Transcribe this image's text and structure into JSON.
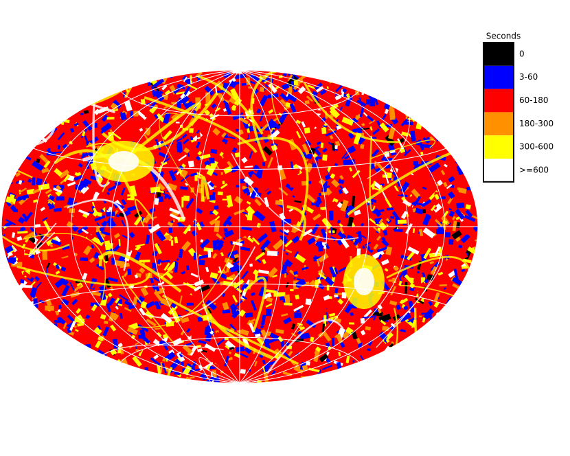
{
  "legend": {
    "title": "Seconds",
    "items": [
      {
        "label": "0",
        "color": "#000000"
      },
      {
        "label": "3-60",
        "color": "#0000ff"
      },
      {
        "label": "60-180",
        "color": "#ff0000"
      },
      {
        "label": "180-300",
        "color": "#ff9000"
      },
      {
        "label": "300-600",
        "color": "#ffff00"
      },
      {
        "label": ">=600",
        "color": "#ffffff"
      }
    ]
  }
}
